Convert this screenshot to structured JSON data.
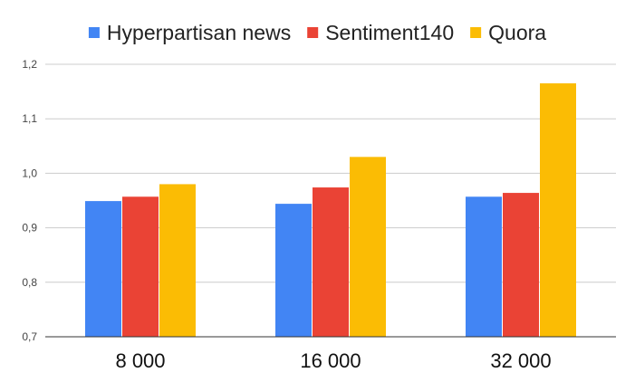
{
  "chart_data": {
    "type": "bar",
    "categories": [
      "8 000",
      "16 000",
      "32 000"
    ],
    "series": [
      {
        "name": "Hyperpartisan news",
        "values": [
          0.949,
          0.944,
          0.957
        ],
        "color": "#4285F4"
      },
      {
        "name": "Sentiment140",
        "values": [
          0.957,
          0.974,
          0.964
        ],
        "color": "#EA4335"
      },
      {
        "name": "Quora",
        "values": [
          0.98,
          1.03,
          1.165
        ],
        "color": "#FBBC04"
      }
    ],
    "ylim": [
      0.7,
      1.2
    ],
    "yticks": [
      0.7,
      0.8,
      0.9,
      1.0,
      1.1,
      1.2
    ],
    "ytick_labels": [
      "0,7",
      "0,8",
      "0,9",
      "1,0",
      "1,1",
      "1,2"
    ],
    "grid": true,
    "legend_position": "top",
    "title": "",
    "xlabel": "",
    "ylabel": ""
  }
}
